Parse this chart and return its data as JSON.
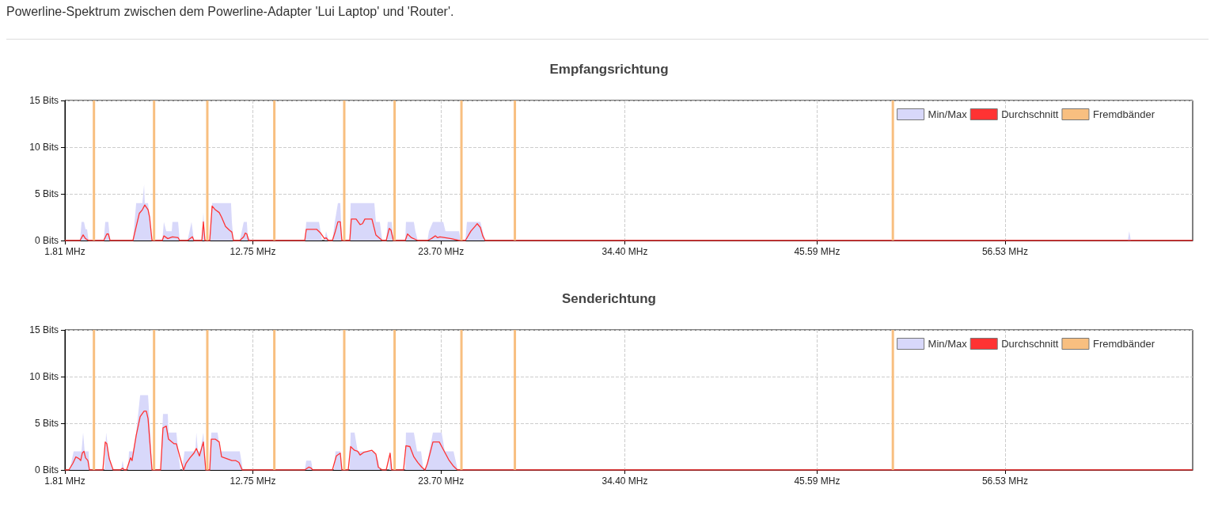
{
  "chart_data": [
    {
      "type": "line",
      "title": "Empfangsrichtung",
      "annotations": [
        "Powerline-Spektrum zwischen dem Powerline-Adapter 'Lui Laptop' und 'Router'."
      ],
      "xlim": [
        1.81,
        67.45
      ],
      "xticks": [
        {
          "value": 1.81,
          "label": "1.81 MHz"
        },
        {
          "value": 12.75,
          "label": "12.75 MHz"
        },
        {
          "value": 23.7,
          "label": "23.70 MHz"
        },
        {
          "value": 34.4,
          "label": "34.40 MHz"
        },
        {
          "value": 45.59,
          "label": "45.59 MHz"
        },
        {
          "value": 56.53,
          "label": "56.53 MHz"
        }
      ],
      "ylim": [
        0,
        15
      ],
      "yticks": [
        {
          "value": 0,
          "label": "0 Bits"
        },
        {
          "value": 5,
          "label": "5 Bits"
        },
        {
          "value": 10,
          "label": "10 Bits"
        },
        {
          "value": 15,
          "label": "15 Bits"
        }
      ],
      "grid": true,
      "legend": "top right",
      "series": [
        {
          "name": "Min/Max",
          "color": "#d8d8fa",
          "type": "area",
          "x": [
            1.81,
            2.69,
            2.78,
            2.92,
            3.01,
            3.1,
            3.19,
            4.07,
            4.16,
            4.34,
            4.44,
            5.77,
            5.96,
            6.32,
            6.42,
            6.46,
            6.65,
            6.88,
            7.48,
            7.57,
            7.71,
            8.03,
            8.07,
            8.4,
            8.49,
            8.95,
            9.18,
            9.32,
            9.78,
            9.87,
            9.96,
            10.24,
            10.38,
            11.48,
            11.53,
            11.62,
            11.99,
            12.22,
            12.4,
            12.45,
            12.63,
            15.77,
            15.86,
            16.6,
            16.78,
            16.92,
            17.01,
            17.15,
            17.38,
            17.52,
            17.7,
            17.84,
            17.93,
            18.39,
            18.44,
            19.82,
            19.91,
            20.14,
            20.28,
            20.51,
            20.6,
            20.83,
            20.93,
            21.62,
            21.66,
            22.12,
            22.21,
            22.35,
            22.91,
            23.0,
            23.23,
            23.83,
            23.96,
            24.75,
            24.84,
            25.12,
            25.21,
            25.99,
            26.13,
            26.27,
            63.67,
            63.76,
            63.85,
            67.45
          ],
          "values": [
            0,
            0,
            2,
            2,
            1.2,
            1.2,
            0,
            0,
            2,
            2,
            0,
            0,
            4,
            4,
            6,
            4,
            4,
            0,
            0,
            2,
            1,
            1,
            2,
            2,
            0,
            0,
            2,
            0,
            0,
            3,
            0,
            0,
            4,
            4,
            2,
            0,
            0,
            2,
            2,
            0.5,
            0,
            0,
            2,
            2,
            0,
            0,
            1,
            0,
            0,
            2,
            4,
            4,
            0,
            0,
            4,
            4,
            2,
            2,
            0,
            0,
            2,
            2,
            0,
            0,
            2,
            2,
            1,
            0,
            0,
            1,
            2,
            2,
            1,
            1,
            0,
            0,
            2,
            2,
            1,
            0,
            0,
            1,
            0,
            0
          ]
        },
        {
          "name": "Durchschnitt",
          "color": "#ff3333",
          "x": [
            1.81,
            2.69,
            2.87,
            3.01,
            3.19,
            4.07,
            4.25,
            4.34,
            4.44,
            5.77,
            5.96,
            6.14,
            6.32,
            6.46,
            6.65,
            6.74,
            6.88,
            7.48,
            7.57,
            7.8,
            8.07,
            8.4,
            8.49,
            8.95,
            9.23,
            9.32,
            9.78,
            9.87,
            9.96,
            10.24,
            10.38,
            10.56,
            10.79,
            10.93,
            11.16,
            11.39,
            11.53,
            11.62,
            11.99,
            12.22,
            12.31,
            12.4,
            12.5,
            15.77,
            15.86,
            16.46,
            16.69,
            16.92,
            17.01,
            17.15,
            17.38,
            17.52,
            17.7,
            17.84,
            17.93,
            18.39,
            18.48,
            18.76,
            18.99,
            19.13,
            19.27,
            19.68,
            19.91,
            20.28,
            20.51,
            20.69,
            20.79,
            20.93,
            21.62,
            21.75,
            21.98,
            22.35,
            22.91,
            23.14,
            23.37,
            23.5,
            23.64,
            24.29,
            24.75,
            25.12,
            25.44,
            25.67,
            25.81,
            25.99,
            26.13,
            26.27,
            67.45
          ],
          "values": [
            0,
            0,
            0.6,
            0.2,
            0,
            0,
            0.7,
            0.7,
            0,
            0,
            1.5,
            2.9,
            3.3,
            3.8,
            3.3,
            2.5,
            0,
            0,
            0.5,
            0.2,
            0.4,
            0.3,
            0,
            0,
            0.4,
            0,
            0,
            2,
            0,
            0,
            3.7,
            3.3,
            3,
            2.5,
            1.5,
            1.1,
            0.9,
            0,
            0,
            0.4,
            0.8,
            0.7,
            0,
            0,
            1.2,
            1.2,
            0.8,
            0.2,
            0.3,
            0,
            0,
            0.8,
            2,
            2,
            0,
            0,
            2.3,
            2.3,
            1.7,
            1.8,
            2.3,
            2.3,
            0.6,
            0,
            0,
            1.3,
            1.1,
            0,
            0,
            0.7,
            0.3,
            0,
            0,
            0.2,
            0.5,
            0.3,
            0.4,
            0.2,
            0,
            0,
            1,
            1.5,
            1.8,
            1.4,
            0.5,
            0,
            0
          ]
        },
        {
          "name": "Fremdbänder",
          "color": "#f8bf80",
          "type": "bar",
          "x": [
            3.5,
            7.0,
            10.1,
            14.0,
            18.07,
            21.0,
            24.89,
            28.0,
            50.0
          ],
          "values": [
            15,
            15,
            15,
            15,
            15,
            15,
            15,
            15,
            15
          ]
        }
      ]
    },
    {
      "type": "line",
      "title": "Senderichtung",
      "xlim": [
        1.81,
        67.45
      ],
      "xticks": [
        {
          "value": 1.81,
          "label": "1.81 MHz"
        },
        {
          "value": 12.75,
          "label": "12.75 MHz"
        },
        {
          "value": 23.7,
          "label": "23.70 MHz"
        },
        {
          "value": 34.4,
          "label": "34.40 MHz"
        },
        {
          "value": 45.59,
          "label": "45.59 MHz"
        },
        {
          "value": 56.53,
          "label": "56.53 MHz"
        }
      ],
      "ylim": [
        0,
        15
      ],
      "yticks": [
        {
          "value": 0,
          "label": "0 Bits"
        },
        {
          "value": 5,
          "label": "5 Bits"
        },
        {
          "value": 10,
          "label": "10 Bits"
        },
        {
          "value": 15,
          "label": "15 Bits"
        }
      ],
      "grid": true,
      "legend": "top right",
      "series": [
        {
          "name": "Min/Max",
          "color": "#d8d8fa",
          "type": "area",
          "x": [
            1.81,
            2.09,
            2.32,
            2.78,
            2.87,
            2.96,
            3.19,
            3.24,
            4.11,
            4.21,
            4.34,
            4.57,
            5.08,
            5.17,
            5.26,
            5.49,
            5.54,
            5.77,
            5.96,
            6.19,
            6.65,
            6.78,
            6.88,
            7.38,
            7.52,
            7.8,
            7.84,
            8.3,
            8.4,
            8.53,
            8.63,
            8.77,
            9.41,
            9.46,
            9.55,
            9.69,
            9.87,
            10.01,
            10.24,
            10.33,
            10.7,
            10.84,
            11.99,
            12.17,
            15.77,
            15.86,
            16.14,
            16.23,
            17.47,
            17.56,
            17.84,
            17.93,
            18.39,
            18.44,
            18.67,
            18.85,
            19.82,
            20.05,
            20.14,
            20.69,
            20.74,
            20.83,
            21.62,
            21.66,
            22.12,
            22.31,
            22.54,
            22.68,
            22.81,
            23.23,
            23.74,
            23.92,
            24.43,
            24.61,
            24.66,
            67.45
          ],
          "values": [
            0,
            0,
            2,
            2,
            4,
            2,
            2,
            0,
            0,
            4,
            2,
            0,
            0,
            1,
            0,
            0,
            2,
            2,
            4,
            8,
            8,
            4,
            0,
            0,
            6,
            6,
            4,
            4,
            2,
            0,
            0,
            2,
            2,
            4,
            2,
            2,
            4,
            0,
            0,
            4,
            4,
            2,
            2,
            0,
            0,
            1,
            1,
            0,
            0,
            2,
            2,
            0,
            0,
            4,
            4,
            2,
            2,
            1,
            0,
            0,
            2,
            0,
            0,
            4,
            4,
            2,
            2,
            0,
            0,
            4,
            4,
            2,
            2,
            0.5,
            0,
            0
          ]
        },
        {
          "name": "Durchschnitt",
          "color": "#ff3333",
          "x": [
            1.81,
            2.04,
            2.27,
            2.45,
            2.64,
            2.73,
            2.82,
            2.92,
            3.01,
            3.15,
            3.24,
            4.02,
            4.16,
            4.25,
            4.39,
            4.62,
            5.03,
            5.17,
            5.26,
            5.4,
            5.63,
            5.72,
            5.96,
            6.19,
            6.42,
            6.55,
            6.65,
            6.88,
            7.38,
            7.52,
            7.71,
            7.84,
            8.03,
            8.17,
            8.3,
            8.49,
            8.72,
            8.86,
            9.09,
            9.32,
            9.46,
            9.64,
            9.87,
            10.01,
            10.24,
            10.33,
            10.56,
            10.79,
            10.93,
            11.25,
            11.53,
            11.76,
            11.94,
            12.13,
            15.77,
            16.0,
            16.14,
            16.23,
            17.38,
            17.61,
            17.84,
            17.93,
            18.3,
            18.44,
            18.67,
            18.85,
            18.99,
            19.22,
            19.45,
            19.68,
            19.91,
            20.05,
            20.28,
            20.51,
            20.74,
            20.83,
            21.52,
            21.66,
            21.89,
            22.12,
            22.35,
            22.58,
            22.77,
            22.91,
            23.23,
            23.6,
            23.83,
            24.15,
            24.43,
            24.66,
            67.45
          ],
          "values": [
            0,
            0,
            0.7,
            1.4,
            1.2,
            1,
            1.8,
            2,
            1.3,
            1,
            0,
            0,
            3,
            2.8,
            1.2,
            0,
            0,
            0.2,
            0,
            0,
            1.3,
            1,
            3.7,
            5.7,
            6.3,
            6.3,
            5.5,
            0,
            0,
            4.5,
            4.7,
            3.3,
            3,
            2.8,
            2.8,
            1.5,
            0,
            0.7,
            1.3,
            1.8,
            2.3,
            1.5,
            3,
            0,
            0,
            3.3,
            3.3,
            3,
            1.4,
            1.2,
            1,
            1,
            0.8,
            0,
            0,
            0.3,
            0.2,
            0,
            0,
            1.5,
            1.8,
            0,
            0,
            2.5,
            2.1,
            2,
            1.6,
            1.9,
            2,
            2.1,
            1.7,
            0.3,
            0,
            0,
            1.8,
            0,
            0,
            2.6,
            2.5,
            1.4,
            0.8,
            0.3,
            0,
            0.7,
            3,
            3,
            2.2,
            1.1,
            0.4,
            0,
            0
          ]
        },
        {
          "name": "Fremdbänder",
          "color": "#f8bf80",
          "type": "bar",
          "x": [
            3.5,
            7.0,
            10.1,
            14.0,
            18.07,
            21.0,
            24.89,
            28.0,
            50.0
          ],
          "values": [
            15,
            15,
            15,
            15,
            15,
            15,
            15,
            15,
            15
          ]
        }
      ]
    }
  ]
}
